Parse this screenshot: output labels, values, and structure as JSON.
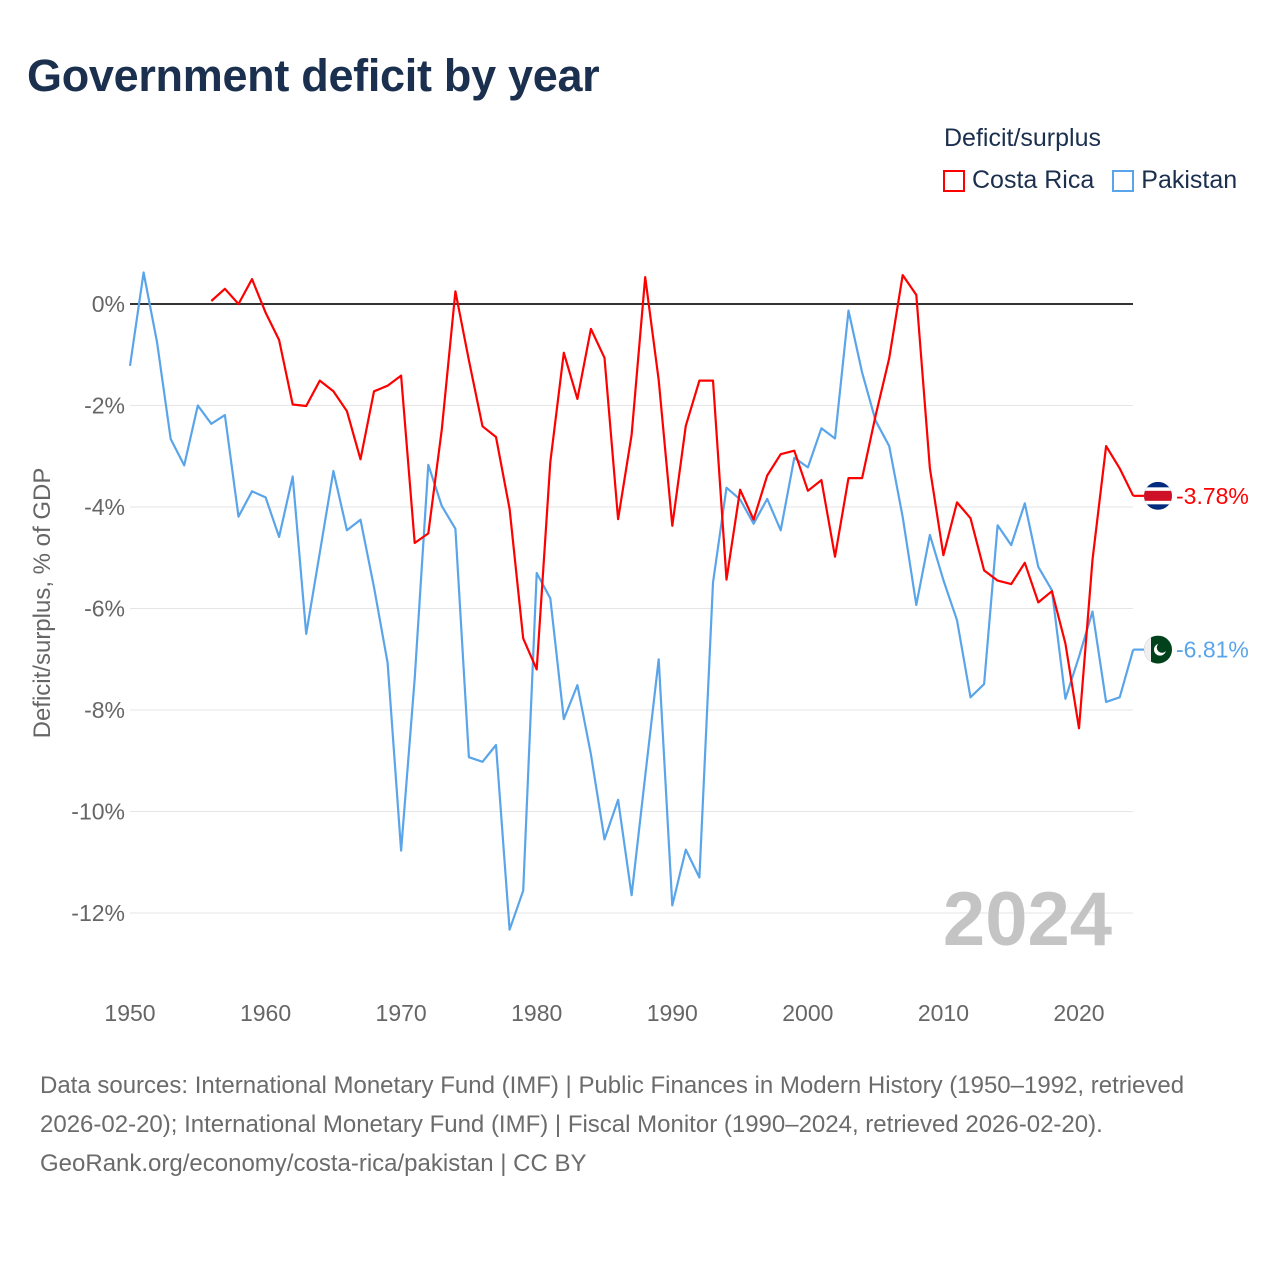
{
  "title": "Government deficit by year",
  "legend": {
    "title": "Deficit/surplus",
    "items": [
      {
        "label": "Costa Rica",
        "color": "#ff0000"
      },
      {
        "label": "Pakistan",
        "color": "#5aa5ea"
      }
    ]
  },
  "year_label": "2024",
  "footer": {
    "sources": "Data sources: International Monetary Fund (IMF) | Public Finances in Modern History (1950–1992, retrieved 2026-02-20); International Monetary Fund (IMF) | Fiscal Monitor (1990–2024, retrieved 2026-02-20).",
    "credit": "GeoRank.org/economy/costa-rica/pakistan | CC BY"
  },
  "chart_data": {
    "type": "line",
    "title": "Government deficit by year",
    "xlabel": "",
    "ylabel": "Deficit/surplus, % of GDP",
    "xlim": [
      1950,
      2024
    ],
    "ylim": [
      -13.5,
      1
    ],
    "x_ticks": [
      1950,
      1960,
      1970,
      1980,
      1990,
      2000,
      2010,
      2020
    ],
    "x_tick_labels": [
      "1950",
      "1960",
      "1970",
      "1980",
      "1990",
      "2000",
      "2010",
      "2020"
    ],
    "y_ticks": [
      0,
      -2,
      -4,
      -6,
      -8,
      -10,
      -12
    ],
    "y_tick_labels": [
      "0%",
      "-2%",
      "-4%",
      "-6%",
      "-8%",
      "-10%",
      "-12%"
    ],
    "grid": true,
    "legend_position": "top-right",
    "series": [
      {
        "name": "Costa Rica",
        "color": "#ff0000",
        "end_label": "-3.78%",
        "start_year": 1956,
        "values": [
          0.06,
          0.3,
          0.0,
          0.49,
          -0.17,
          -0.71,
          -1.98,
          -2.01,
          -1.51,
          -1.72,
          -2.11,
          -3.06,
          -1.72,
          -1.61,
          -1.41,
          -4.71,
          -4.52,
          -2.47,
          0.25,
          -1.11,
          -2.41,
          -2.62,
          -4.04,
          -6.59,
          -7.2,
          -3.12,
          -0.96,
          -1.87,
          -0.49,
          -1.06,
          -4.24,
          -2.58,
          0.53,
          -1.5,
          -4.37,
          -2.4,
          -1.51,
          -1.51,
          -5.43,
          -3.66,
          -4.25,
          -3.38,
          -2.96,
          -2.89,
          -3.68,
          -3.47,
          -4.98,
          -3.43,
          -3.43,
          -2.2,
          -1.07,
          0.57,
          0.18,
          -3.24,
          -4.95,
          -3.91,
          -4.22,
          -5.25,
          -5.45,
          -5.52,
          -5.1,
          -5.88,
          -5.66,
          -6.69,
          -8.36,
          -5.04,
          -2.8,
          -3.24,
          -3.78
        ]
      },
      {
        "name": "Pakistan",
        "color": "#5aa5ea",
        "end_label": "-6.81%",
        "start_year": 1950,
        "values": [
          -1.22,
          0.62,
          -0.76,
          -2.66,
          -3.18,
          -2.0,
          -2.36,
          -2.19,
          -4.19,
          -3.69,
          -3.81,
          -4.59,
          -3.4,
          -6.5,
          -4.9,
          -3.29,
          -4.46,
          -4.25,
          -5.58,
          -7.07,
          -10.77,
          -7.38,
          -3.17,
          -3.98,
          -4.43,
          -8.93,
          -9.02,
          -8.69,
          -12.33,
          -11.56,
          -5.3,
          -5.8,
          -8.18,
          -7.51,
          -8.87,
          -10.55,
          -9.77,
          -11.65,
          -9.3,
          -7.0,
          -11.85,
          -10.75,
          -11.3,
          -5.49,
          -3.62,
          -3.85,
          -4.33,
          -3.84,
          -4.46,
          -3.03,
          -3.22,
          -2.45,
          -2.65,
          -0.13,
          -1.35,
          -2.3,
          -2.8,
          -4.2,
          -5.93,
          -4.55,
          -5.44,
          -6.23,
          -7.75,
          -7.49,
          -4.36,
          -4.75,
          -3.93,
          -5.18,
          -5.64,
          -7.78,
          -6.95,
          -6.06,
          -7.84,
          -7.75,
          -6.81
        ]
      }
    ]
  }
}
